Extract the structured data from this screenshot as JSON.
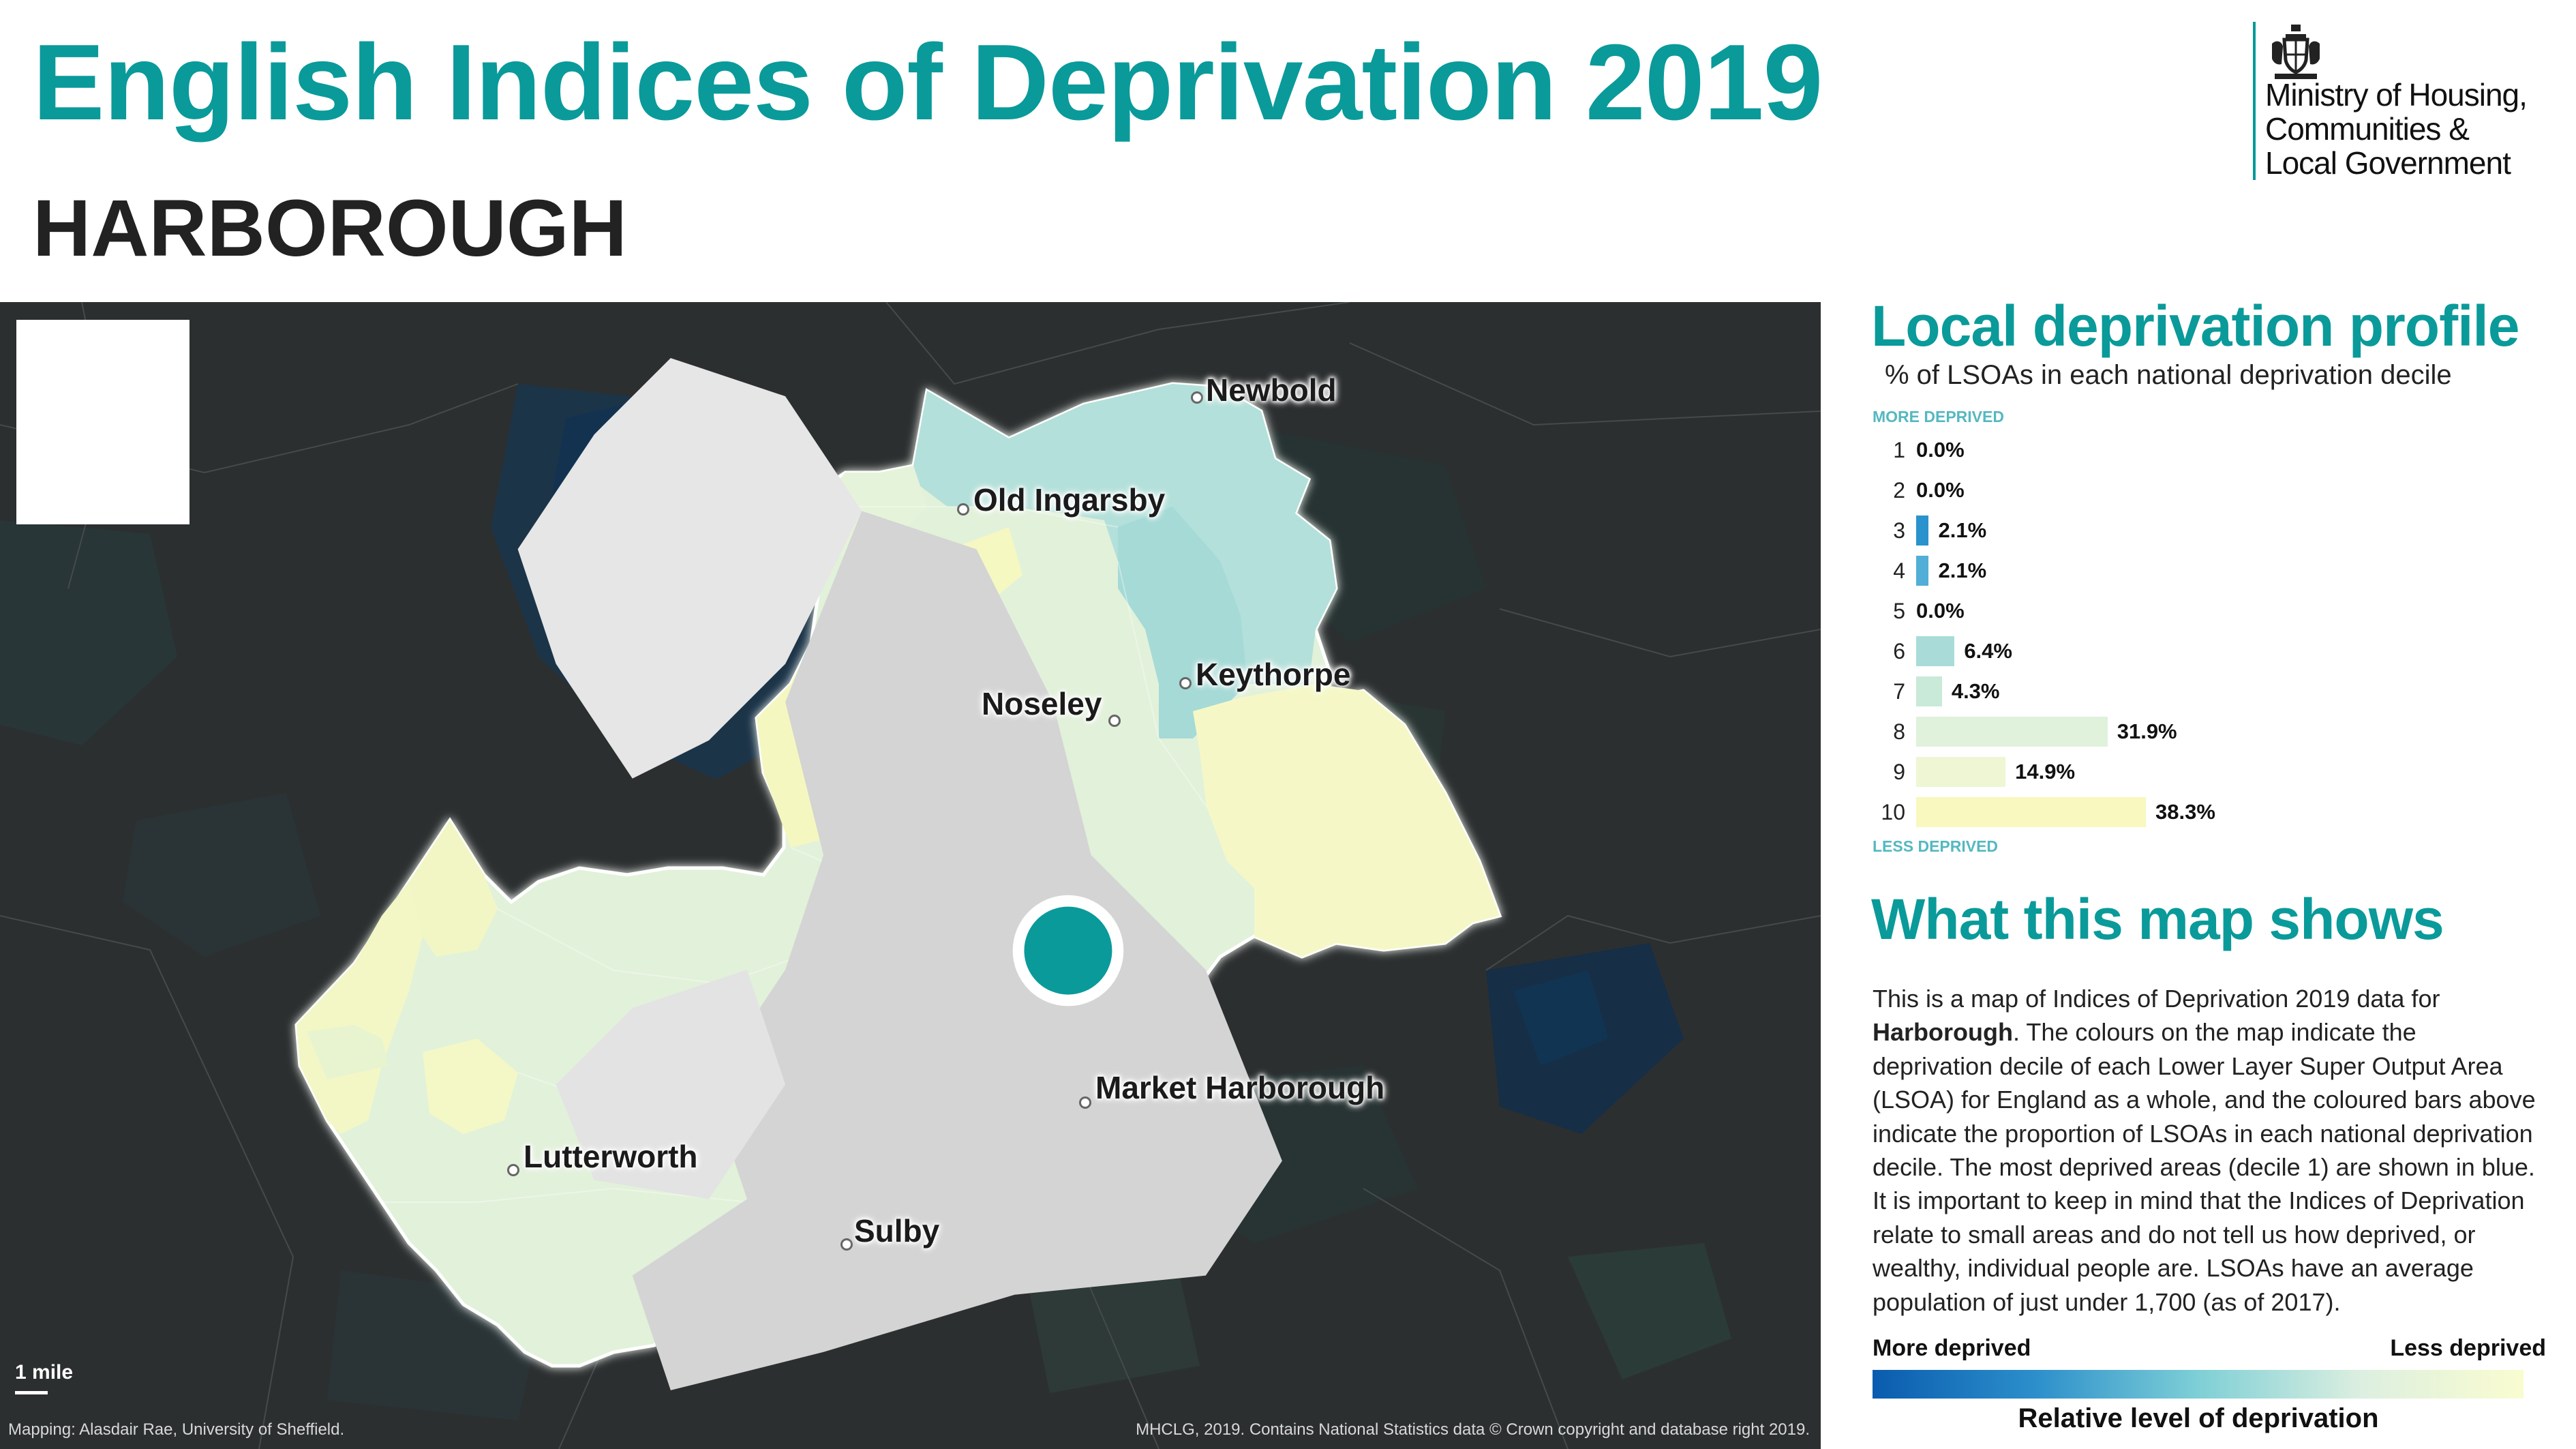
{
  "header": {
    "title": "English Indices of Deprivation 2019",
    "subtitle": "HARBOROUGH"
  },
  "logo": {
    "crest_icon": "royal-coat-of-arms-icon",
    "text": "Ministry of Housing,\nCommunities &\nLocal Government"
  },
  "map": {
    "places": [
      {
        "id": "newbold",
        "name": "Newbold"
      },
      {
        "id": "old-ingarsby",
        "name": "Old Ingarsby"
      },
      {
        "id": "keythorpe",
        "name": "Keythorpe"
      },
      {
        "id": "noseley",
        "name": "Noseley"
      },
      {
        "id": "market-harborough",
        "name": "Market Harborough"
      },
      {
        "id": "lutterworth",
        "name": "Lutterworth"
      },
      {
        "id": "sulby",
        "name": "Sulby"
      }
    ],
    "scale_label": "1 mile",
    "credit_left": "Mapping: Alasdair Rae, University of Sheffield.",
    "credit_right": "MHCLG, 2019. Contains National Statistics data © Crown copyright and database right 2019.",
    "inset_icon": "england-locator-map-icon",
    "colors": {
      "background": "#2c2f30",
      "highlight": "#0a9a9a"
    }
  },
  "profile": {
    "title": "Local deprivation profile",
    "subtitle": "% of LSOAs in each national deprivation decile",
    "more_label": "MORE DEPRIVED",
    "less_label": "LESS DEPRIVED",
    "deciles": [
      {
        "decile": "1",
        "pct": 0.0,
        "label": "0.0%",
        "color": "#0a5cae"
      },
      {
        "decile": "2",
        "pct": 0.0,
        "label": "0.0%",
        "color": "#1a74bd"
      },
      {
        "decile": "3",
        "pct": 2.1,
        "label": "2.1%",
        "color": "#2a92cc"
      },
      {
        "decile": "4",
        "pct": 2.1,
        "label": "2.1%",
        "color": "#52aed6"
      },
      {
        "decile": "5",
        "pct": 0.0,
        "label": "0.0%",
        "color": "#86cdd9"
      },
      {
        "decile": "6",
        "pct": 6.4,
        "label": "6.4%",
        "color": "#a9dcd8"
      },
      {
        "decile": "7",
        "pct": 4.3,
        "label": "4.3%",
        "color": "#c9e9d9"
      },
      {
        "decile": "8",
        "pct": 31.9,
        "label": "31.9%",
        "color": "#e0f1dc"
      },
      {
        "decile": "9",
        "pct": 14.9,
        "label": "14.9%",
        "color": "#eef6d3"
      },
      {
        "decile": "10",
        "pct": 38.3,
        "label": "38.3%",
        "color": "#f8f8bf"
      }
    ]
  },
  "about": {
    "title": "What this map shows",
    "text_before": "This is a map of Indices of Deprivation 2019 data for ",
    "text_bold": "Harborough",
    "text_after": ". The colours on the map indicate the deprivation decile of each Lower Layer Super Output Area (LSOA) for England as a whole, and the coloured bars above indicate the proportion of LSOAs in each national deprivation decile. The most deprived areas (decile 1) are shown in blue. It is important to keep in mind that the Indices of Deprivation relate to small areas and do not tell us how deprived, or wealthy, individual people are. LSOAs have an average population of just under 1,700 (as of 2017)."
  },
  "legend": {
    "more": "More deprived",
    "less": "Less deprived",
    "title": "Relative level of deprivation"
  }
}
